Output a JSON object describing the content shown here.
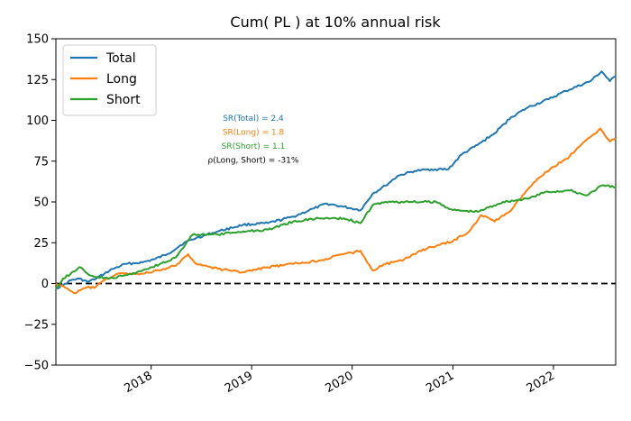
{
  "chart_data": {
    "type": "line",
    "title": "Cum( PL ) at 10% annual risk",
    "xlabel": "",
    "ylabel": "",
    "xlim": [
      "2017-01-20",
      "2022-08-15"
    ],
    "ylim": [
      -50,
      150
    ],
    "yticks": [
      -50,
      -25,
      0,
      25,
      50,
      75,
      100,
      125,
      150
    ],
    "xticks": [
      {
        "date": "2018-01-01",
        "label": "2018"
      },
      {
        "date": "2019-01-01",
        "label": "2019"
      },
      {
        "date": "2020-01-01",
        "label": "2020"
      },
      {
        "date": "2021-01-01",
        "label": "2021"
      },
      {
        "date": "2022-01-01",
        "label": "2022"
      }
    ],
    "grid": false,
    "legend_position": "top-left",
    "zero_line": {
      "y": 0,
      "style": "dashed",
      "color": "#000000"
    },
    "series": [
      {
        "name": "Total",
        "color": "#1f77b4",
        "points": [
          [
            "2017-01-20",
            -3
          ],
          [
            "2017-02-15",
            -1
          ],
          [
            "2017-03-15",
            2
          ],
          [
            "2017-04-15",
            3
          ],
          [
            "2017-05-15",
            1
          ],
          [
            "2017-06-15",
            3
          ],
          [
            "2017-07-15",
            6
          ],
          [
            "2017-08-15",
            9
          ],
          [
            "2017-10-01",
            12
          ],
          [
            "2017-12-01",
            13
          ],
          [
            "2018-01-15",
            15
          ],
          [
            "2018-03-01",
            18
          ],
          [
            "2018-05-01",
            25
          ],
          [
            "2018-06-15",
            28
          ],
          [
            "2018-09-01",
            32
          ],
          [
            "2018-12-01",
            36
          ],
          [
            "2019-03-01",
            37
          ],
          [
            "2019-06-01",
            41
          ],
          [
            "2019-08-15",
            46
          ],
          [
            "2019-10-01",
            49
          ],
          [
            "2019-12-01",
            47
          ],
          [
            "2020-02-01",
            45
          ],
          [
            "2020-03-15",
            55
          ],
          [
            "2020-05-01",
            60
          ],
          [
            "2020-06-15",
            66
          ],
          [
            "2020-08-15",
            69
          ],
          [
            "2020-10-15",
            70
          ],
          [
            "2020-12-15",
            70
          ],
          [
            "2021-02-01",
            79
          ],
          [
            "2021-04-01",
            85
          ],
          [
            "2021-06-01",
            92
          ],
          [
            "2021-08-01",
            102
          ],
          [
            "2021-10-01",
            108
          ],
          [
            "2021-12-15",
            113
          ],
          [
            "2022-02-15",
            118
          ],
          [
            "2022-05-15",
            124
          ],
          [
            "2022-06-25",
            130
          ],
          [
            "2022-07-25",
            124
          ],
          [
            "2022-08-15",
            127
          ]
        ]
      },
      {
        "name": "Long",
        "color": "#ff7f0e",
        "points": [
          [
            "2017-01-20",
            0
          ],
          [
            "2017-03-01",
            -3
          ],
          [
            "2017-04-01",
            -6
          ],
          [
            "2017-05-01",
            -3
          ],
          [
            "2017-06-15",
            -2
          ],
          [
            "2017-07-15",
            2
          ],
          [
            "2017-09-01",
            6
          ],
          [
            "2017-12-01",
            6
          ],
          [
            "2018-02-01",
            8
          ],
          [
            "2018-04-01",
            11
          ],
          [
            "2018-05-15",
            18
          ],
          [
            "2018-06-15",
            12
          ],
          [
            "2018-09-01",
            9
          ],
          [
            "2018-12-01",
            7
          ],
          [
            "2019-03-01",
            10
          ],
          [
            "2019-06-01",
            12
          ],
          [
            "2019-09-01",
            14
          ],
          [
            "2019-12-01",
            18
          ],
          [
            "2020-02-01",
            20
          ],
          [
            "2020-03-15",
            8
          ],
          [
            "2020-05-01",
            12
          ],
          [
            "2020-07-01",
            14
          ],
          [
            "2020-09-01",
            20
          ],
          [
            "2020-11-01",
            23
          ],
          [
            "2021-01-01",
            26
          ],
          [
            "2021-03-01",
            32
          ],
          [
            "2021-04-15",
            42
          ],
          [
            "2021-06-01",
            38
          ],
          [
            "2021-08-01",
            45
          ],
          [
            "2021-10-01",
            58
          ],
          [
            "2021-12-01",
            68
          ],
          [
            "2022-03-01",
            78
          ],
          [
            "2022-05-01",
            88
          ],
          [
            "2022-06-20",
            95
          ],
          [
            "2022-07-25",
            87
          ],
          [
            "2022-08-15",
            89
          ]
        ]
      },
      {
        "name": "Short",
        "color": "#2ca02c",
        "points": [
          [
            "2017-01-20",
            -3
          ],
          [
            "2017-02-15",
            3
          ],
          [
            "2017-03-15",
            6
          ],
          [
            "2017-04-15",
            10
          ],
          [
            "2017-05-15",
            6
          ],
          [
            "2017-06-15",
            4
          ],
          [
            "2017-08-01",
            3
          ],
          [
            "2017-10-01",
            5
          ],
          [
            "2017-12-01",
            8
          ],
          [
            "2018-02-01",
            12
          ],
          [
            "2018-04-01",
            16
          ],
          [
            "2018-06-01",
            30
          ],
          [
            "2018-09-01",
            30
          ],
          [
            "2018-12-01",
            32
          ],
          [
            "2019-03-01",
            33
          ],
          [
            "2019-06-01",
            38
          ],
          [
            "2019-09-01",
            40
          ],
          [
            "2019-12-01",
            40
          ],
          [
            "2020-02-01",
            37
          ],
          [
            "2020-03-15",
            48
          ],
          [
            "2020-05-01",
            50
          ],
          [
            "2020-08-01",
            50
          ],
          [
            "2020-11-01",
            50
          ],
          [
            "2021-01-01",
            45
          ],
          [
            "2021-04-01",
            44
          ],
          [
            "2021-07-01",
            50
          ],
          [
            "2021-10-01",
            52
          ],
          [
            "2021-12-01",
            56
          ],
          [
            "2022-03-01",
            57
          ],
          [
            "2022-05-01",
            54
          ],
          [
            "2022-06-25",
            60
          ],
          [
            "2022-08-15",
            59
          ]
        ]
      }
    ],
    "stats": [
      {
        "text": "SR(Total) = 2.4",
        "color": "#1f77b4"
      },
      {
        "text": "SR(Long) = 1.8",
        "color": "#ff7f0e"
      },
      {
        "text": "SR(Short) = 1.1",
        "color": "#2ca02c"
      },
      {
        "text": "ρ(Long, Short) = -31%",
        "color": "#000000"
      }
    ]
  }
}
